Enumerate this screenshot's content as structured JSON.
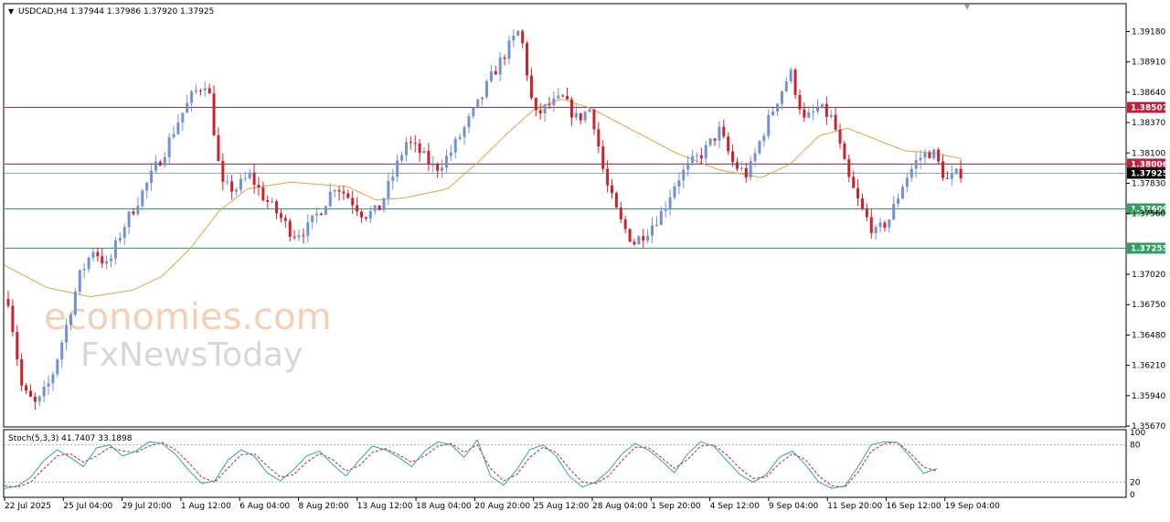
{
  "header": {
    "symbol_line": "USDCAD,H4  1.37944 1.37986 1.37920 1.37925"
  },
  "watermark": {
    "line1": "economies.com",
    "line2": "FxNewsToday"
  },
  "colors": {
    "bull": "#6f93d6",
    "bear": "#d0202a",
    "ma": "#e8a23a",
    "resistance": "#c0203a",
    "support": "#2e9e62",
    "current": "#000000",
    "stoch_main": "#2aa7b7",
    "stoch_signal": "#d0202a"
  },
  "price_axis": {
    "ticks": [
      "1.39180",
      "1.38910",
      "1.38640",
      "1.38370",
      "1.38100",
      "1.37830",
      "1.37560",
      "1.37020",
      "1.36750",
      "1.36480",
      "1.36210",
      "1.35940",
      "1.35670"
    ]
  },
  "levels": [
    {
      "label": "1.38507",
      "value": 1.38507,
      "kind": "resistance"
    },
    {
      "label": "1.38006",
      "value": 1.38006,
      "kind": "resistance"
    },
    {
      "label": "1.37925",
      "value": 1.37925,
      "kind": "current"
    },
    {
      "label": "1.37609",
      "value": 1.37609,
      "kind": "support"
    },
    {
      "label": "1.37255",
      "value": 1.37255,
      "kind": "support"
    }
  ],
  "time_axis": {
    "labels": [
      "22 Jul 2025",
      "25 Jul 04:00",
      "29 Jul 20:00",
      "1 Aug 12:00",
      "6 Aug 04:00",
      "8 Aug 20:00",
      "13 Aug 12:00",
      "18 Aug 04:00",
      "20 Aug 20:00",
      "25 Aug 12:00",
      "28 Aug 04:00",
      "1 Sep 20:00",
      "4 Sep 12:00",
      "9 Sep 04:00",
      "11 Sep 20:00",
      "16 Sep 12:00",
      "19 Sep 04:00"
    ]
  },
  "stoch": {
    "title": "Stoch(5,3,3) 41.7407 33.1898",
    "ticks": [
      "100",
      "80",
      "20",
      "0"
    ],
    "levels": [
      80,
      20
    ]
  },
  "chart_data": {
    "type": "candlestick",
    "symbol": "USDCAD",
    "timeframe": "H4",
    "ylim": [
      1.3567,
      1.3942
    ],
    "price_path": [
      [
        0,
        1.368
      ],
      [
        1,
        1.3598
      ],
      [
        2,
        1.3585
      ],
      [
        3,
        1.3608
      ],
      [
        4,
        1.3652
      ],
      [
        5,
        1.37
      ],
      [
        6,
        1.3725
      ],
      [
        7,
        1.3708
      ],
      [
        8,
        1.3742
      ],
      [
        9,
        1.3765
      ],
      [
        10,
        1.3788
      ],
      [
        11,
        1.3812
      ],
      [
        12,
        1.384
      ],
      [
        13,
        1.3862
      ],
      [
        14,
        1.3875
      ],
      [
        15,
        1.378
      ],
      [
        16,
        1.3778
      ],
      [
        17,
        1.379
      ],
      [
        18,
        1.377
      ],
      [
        19,
        1.3755
      ],
      [
        20,
        1.3738
      ],
      [
        21,
        1.3742
      ],
      [
        22,
        1.376
      ],
      [
        23,
        1.3782
      ],
      [
        24,
        1.377
      ],
      [
        25,
        1.3755
      ],
      [
        26,
        1.3758
      ],
      [
        27,
        1.3788
      ],
      [
        28,
        1.382
      ],
      [
        29,
        1.381
      ],
      [
        30,
        1.3795
      ],
      [
        31,
        1.3808
      ],
      [
        32,
        1.383
      ],
      [
        33,
        1.3852
      ],
      [
        34,
        1.3878
      ],
      [
        35,
        1.39
      ],
      [
        36,
        1.392
      ],
      [
        37,
        1.3842
      ],
      [
        38,
        1.3852
      ],
      [
        39,
        1.3858
      ],
      [
        40,
        1.384
      ],
      [
        41,
        1.385
      ],
      [
        42,
        1.3785
      ],
      [
        43,
        1.375
      ],
      [
        44,
        1.373
      ],
      [
        45,
        1.3742
      ],
      [
        46,
        1.3758
      ],
      [
        47,
        1.3786
      ],
      [
        48,
        1.38
      ],
      [
        49,
        1.3812
      ],
      [
        50,
        1.383
      ],
      [
        51,
        1.38
      ],
      [
        52,
        1.379
      ],
      [
        53,
        1.3825
      ],
      [
        54,
        1.3855
      ],
      [
        55,
        1.3882
      ],
      [
        56,
        1.3838
      ],
      [
        57,
        1.385
      ],
      [
        58,
        1.384
      ],
      [
        59,
        1.379
      ],
      [
        60,
        1.376
      ],
      [
        61,
        1.3738
      ],
      [
        62,
        1.3752
      ],
      [
        63,
        1.3785
      ],
      [
        64,
        1.3805
      ],
      [
        65,
        1.3812
      ],
      [
        66,
        1.3785
      ],
      [
        67,
        1.3793
      ]
    ],
    "moving_average_path": [
      [
        0,
        1.371
      ],
      [
        3,
        1.369
      ],
      [
        6,
        1.3682
      ],
      [
        9,
        1.3688
      ],
      [
        11,
        1.37
      ],
      [
        13,
        1.3725
      ],
      [
        15,
        1.3758
      ],
      [
        17,
        1.3778
      ],
      [
        20,
        1.3784
      ],
      [
        24,
        1.378
      ],
      [
        26,
        1.3768
      ],
      [
        28,
        1.377
      ],
      [
        31,
        1.3778
      ],
      [
        33,
        1.38
      ],
      [
        35,
        1.3825
      ],
      [
        37,
        1.3848
      ],
      [
        39,
        1.3858
      ],
      [
        41,
        1.385
      ],
      [
        44,
        1.383
      ],
      [
        47,
        1.381
      ],
      [
        50,
        1.3795
      ],
      [
        53,
        1.3788
      ],
      [
        55,
        1.38
      ],
      [
        57,
        1.3825
      ],
      [
        59,
        1.3832
      ],
      [
        61,
        1.3822
      ],
      [
        63,
        1.3812
      ],
      [
        65,
        1.381
      ],
      [
        67,
        1.3805
      ]
    ],
    "stoch_main": [
      10,
      14,
      28,
      55,
      72,
      60,
      45,
      75,
      80,
      62,
      70,
      85,
      82,
      65,
      40,
      18,
      22,
      55,
      72,
      62,
      35,
      22,
      40,
      62,
      70,
      48,
      30,
      55,
      78,
      72,
      60,
      45,
      70,
      85,
      80,
      60,
      88,
      30,
      15,
      40,
      72,
      80,
      62,
      30,
      12,
      20,
      38,
      65,
      82,
      72,
      55,
      35,
      65,
      85,
      78,
      55,
      32,
      20,
      32,
      60,
      70,
      48,
      20,
      10,
      14,
      45,
      80,
      85,
      84,
      60,
      34,
      42
    ],
    "stoch_signal": [
      14,
      12,
      20,
      42,
      62,
      66,
      52,
      62,
      76,
      70,
      68,
      78,
      84,
      72,
      52,
      28,
      20,
      42,
      64,
      66,
      46,
      28,
      32,
      52,
      66,
      56,
      38,
      46,
      68,
      74,
      64,
      52,
      62,
      78,
      82,
      68,
      80,
      42,
      22,
      32,
      60,
      76,
      68,
      42,
      20,
      18,
      30,
      54,
      76,
      76,
      60,
      42,
      56,
      78,
      80,
      64,
      42,
      26,
      28,
      50,
      66,
      56,
      30,
      14,
      12,
      36,
      70,
      82,
      84,
      66,
      44,
      38
    ]
  }
}
